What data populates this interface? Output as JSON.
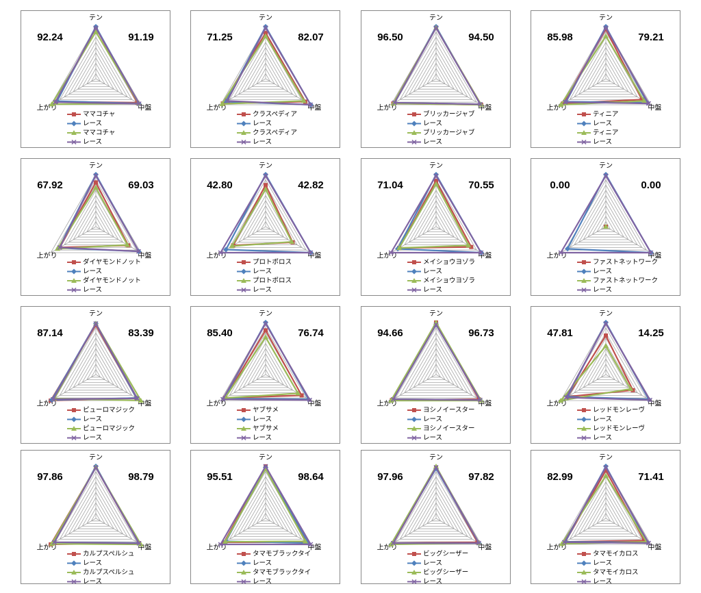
{
  "chart_data": [
    {
      "type": "radar",
      "categories": [
        "テン",
        "中盤",
        "上がり"
      ],
      "annotations": [
        "92.24",
        "91.19"
      ],
      "rlim": [
        0,
        100
      ],
      "rticks": [
        10,
        20,
        30,
        40,
        50,
        60,
        70,
        80,
        90,
        100
      ],
      "series": [
        {
          "name": "ママコチャ",
          "color": "#c0504d",
          "values": [
            98,
            92,
            88
          ]
        },
        {
          "name": "レース",
          "color": "#4f81bd",
          "values": [
            100,
            95,
            86
          ]
        },
        {
          "name": "ママコチャ",
          "color": "#9bbb59",
          "values": [
            90,
            95,
            98
          ]
        },
        {
          "name": "レース",
          "color": "#8064a2",
          "values": [
            98,
            96,
            90
          ]
        }
      ]
    },
    {
      "type": "radar",
      "categories": [
        "テン",
        "中盤",
        "上がり"
      ],
      "annotations": [
        "71.25",
        "82.07"
      ],
      "rlim": [
        0,
        100
      ],
      "rticks": [
        10,
        20,
        30,
        40,
        50,
        60,
        70,
        80,
        90,
        100
      ],
      "series": [
        {
          "name": "クラスペディア",
          "color": "#c0504d",
          "values": [
            88,
            88,
            95
          ]
        },
        {
          "name": "レース",
          "color": "#4f81bd",
          "values": [
            100,
            100,
            88
          ]
        },
        {
          "name": "クラスペディア",
          "color": "#9bbb59",
          "values": [
            82,
            85,
            97
          ]
        },
        {
          "name": "レース",
          "color": "#8064a2",
          "values": [
            98,
            100,
            85
          ]
        }
      ]
    },
    {
      "type": "radar",
      "categories": [
        "テン",
        "中盤",
        "上がり"
      ],
      "annotations": [
        "96.50",
        "94.50"
      ],
      "rlim": [
        0,
        100
      ],
      "rticks": [
        10,
        20,
        30,
        40,
        50,
        60,
        70,
        80,
        90,
        100
      ],
      "series": [
        {
          "name": "ブリッカージャブ",
          "color": "#c0504d",
          "values": [
            98,
            100,
            95
          ]
        },
        {
          "name": "レース",
          "color": "#4f81bd",
          "values": [
            100,
            98,
            92
          ]
        },
        {
          "name": "ブリッカージャブ",
          "color": "#9bbb59",
          "values": [
            98,
            100,
            95
          ]
        },
        {
          "name": "レース",
          "color": "#8064a2",
          "values": [
            98,
            98,
            92
          ]
        }
      ]
    },
    {
      "type": "radar",
      "categories": [
        "テン",
        "中盤",
        "上がり"
      ],
      "annotations": [
        "85.98",
        "79.21"
      ],
      "rlim": [
        0,
        100
      ],
      "rticks": [
        10,
        20,
        30,
        40,
        50,
        60,
        70,
        80,
        90,
        100
      ],
      "series": [
        {
          "name": "ティニア",
          "color": "#c0504d",
          "values": [
            95,
            80,
            95
          ]
        },
        {
          "name": "レース",
          "color": "#4f81bd",
          "values": [
            100,
            92,
            88
          ]
        },
        {
          "name": "ティニア",
          "color": "#9bbb59",
          "values": [
            82,
            85,
            100
          ]
        },
        {
          "name": "レース",
          "color": "#8064a2",
          "values": [
            98,
            95,
            90
          ]
        }
      ]
    },
    {
      "type": "radar",
      "categories": [
        "テン",
        "中盤",
        "上がり"
      ],
      "annotations": [
        "67.92",
        "69.03"
      ],
      "rlim": [
        0,
        100
      ],
      "rticks": [
        10,
        20,
        30,
        40,
        50,
        60,
        70,
        80,
        90,
        100
      ],
      "series": [
        {
          "name": "ダイヤモンドノット",
          "color": "#c0504d",
          "values": [
            85,
            72,
            80
          ]
        },
        {
          "name": "レース",
          "color": "#4f81bd",
          "values": [
            100,
            95,
            82
          ]
        },
        {
          "name": "ダイヤモンドノット",
          "color": "#9bbb59",
          "values": [
            75,
            70,
            85
          ]
        },
        {
          "name": "レース",
          "color": "#8064a2",
          "values": [
            98,
            95,
            80
          ]
        }
      ]
    },
    {
      "type": "radar",
      "categories": [
        "テン",
        "中盤",
        "上がり"
      ],
      "annotations": [
        "42.80",
        "42.82"
      ],
      "rlim": [
        0,
        100
      ],
      "rticks": [
        10,
        20,
        30,
        40,
        50,
        60,
        70,
        80,
        90,
        100
      ],
      "series": [
        {
          "name": "プロトポロス",
          "color": "#c0504d",
          "values": [
            80,
            60,
            72
          ]
        },
        {
          "name": "レース",
          "color": "#4f81bd",
          "values": [
            100,
            100,
            88
          ]
        },
        {
          "name": "プロトポロス",
          "color": "#9bbb59",
          "values": [
            72,
            58,
            75
          ]
        },
        {
          "name": "レース",
          "color": "#8064a2",
          "values": [
            98,
            100,
            100
          ]
        }
      ]
    },
    {
      "type": "radar",
      "categories": [
        "テン",
        "中盤",
        "上がり"
      ],
      "annotations": [
        "71.04",
        "70.55"
      ],
      "rlim": [
        0,
        100
      ],
      "rticks": [
        10,
        20,
        30,
        40,
        50,
        60,
        70,
        80,
        90,
        100
      ],
      "series": [
        {
          "name": "メイショウヨゾラ",
          "color": "#c0504d",
          "values": [
            88,
            78,
            82
          ]
        },
        {
          "name": "レース",
          "color": "#4f81bd",
          "values": [
            100,
            100,
            85
          ]
        },
        {
          "name": "メイショウヨゾラ",
          "color": "#9bbb59",
          "values": [
            82,
            72,
            82
          ]
        },
        {
          "name": "レース",
          "color": "#8064a2",
          "values": [
            98,
            100,
            100
          ]
        }
      ]
    },
    {
      "type": "radar",
      "categories": [
        "テン",
        "中盤",
        "上がり"
      ],
      "annotations": [
        "0.00",
        "0.00"
      ],
      "rlim": [
        0,
        100
      ],
      "rticks": [
        10,
        20,
        30,
        40,
        50,
        60,
        70,
        80,
        90,
        100
      ],
      "series": [
        {
          "name": "ファストネットワーク",
          "color": "#c0504d",
          "values": [
            0,
            0,
            0
          ]
        },
        {
          "name": "レース",
          "color": "#4f81bd",
          "values": [
            100,
            100,
            85
          ]
        },
        {
          "name": "ファストネットワーク",
          "color": "#9bbb59",
          "values": [
            0,
            0,
            0
          ]
        },
        {
          "name": "レース",
          "color": "#8064a2",
          "values": [
            98,
            100,
            100
          ]
        }
      ]
    },
    {
      "type": "radar",
      "categories": [
        "テン",
        "中盤",
        "上がり"
      ],
      "annotations": [
        "87.14",
        "83.39"
      ],
      "rlim": [
        0,
        100
      ],
      "rticks": [
        10,
        20,
        30,
        40,
        50,
        60,
        70,
        80,
        90,
        100
      ],
      "series": [
        {
          "name": "ピューロマジック",
          "color": "#c0504d",
          "values": [
            95,
            90,
            100
          ]
        },
        {
          "name": "レース",
          "color": "#4f81bd",
          "values": [
            98,
            90,
            98
          ]
        },
        {
          "name": "ピューロマジック",
          "color": "#9bbb59",
          "values": [
            98,
            100,
            92
          ]
        },
        {
          "name": "レース",
          "color": "#8064a2",
          "values": [
            98,
            92,
            95
          ]
        }
      ]
    },
    {
      "type": "radar",
      "categories": [
        "テン",
        "中盤",
        "上がり"
      ],
      "annotations": [
        "85.40",
        "76.74"
      ],
      "rlim": [
        0,
        100
      ],
      "rticks": [
        10,
        20,
        30,
        40,
        50,
        60,
        70,
        80,
        90,
        100
      ],
      "series": [
        {
          "name": "ヤブサメ",
          "color": "#c0504d",
          "values": [
            85,
            80,
            90
          ]
        },
        {
          "name": "レース",
          "color": "#4f81bd",
          "values": [
            100,
            95,
            92
          ]
        },
        {
          "name": "ヤブサメ",
          "color": "#9bbb59",
          "values": [
            72,
            72,
            90
          ]
        },
        {
          "name": "レース",
          "color": "#8064a2",
          "values": [
            98,
            98,
            95
          ]
        }
      ]
    },
    {
      "type": "radar",
      "categories": [
        "テン",
        "中盤",
        "上がり"
      ],
      "annotations": [
        "94.66",
        "96.73"
      ],
      "rlim": [
        0,
        100
      ],
      "rticks": [
        10,
        20,
        30,
        40,
        50,
        60,
        70,
        80,
        90,
        100
      ],
      "series": [
        {
          "name": "ヨシノイースター",
          "color": "#c0504d",
          "values": [
            100,
            95,
            98
          ]
        },
        {
          "name": "レース",
          "color": "#4f81bd",
          "values": [
            96,
            98,
            95
          ]
        },
        {
          "name": "ヨシノイースター",
          "color": "#9bbb59",
          "values": [
            100,
            100,
            100
          ]
        },
        {
          "name": "レース",
          "color": "#8064a2",
          "values": [
            96,
            98,
            95
          ]
        }
      ]
    },
    {
      "type": "radar",
      "categories": [
        "テン",
        "中盤",
        "上がり"
      ],
      "annotations": [
        "47.81",
        "14.25"
      ],
      "rlim": [
        0,
        100
      ],
      "rticks": [
        10,
        20,
        30,
        40,
        50,
        60,
        70,
        80,
        90,
        100
      ],
      "series": [
        {
          "name": "レッドモンレーヴ",
          "color": "#c0504d",
          "values": [
            75,
            60,
            85
          ]
        },
        {
          "name": "レース",
          "color": "#4f81bd",
          "values": [
            100,
            95,
            85
          ]
        },
        {
          "name": "レッドモンレーヴ",
          "color": "#9bbb59",
          "values": [
            55,
            55,
            100
          ]
        },
        {
          "name": "レース",
          "color": "#8064a2",
          "values": [
            98,
            98,
            88
          ]
        }
      ]
    },
    {
      "type": "radar",
      "categories": [
        "テン",
        "中盤",
        "上がり"
      ],
      "annotations": [
        "97.86",
        "98.79"
      ],
      "rlim": [
        0,
        100
      ],
      "rticks": [
        10,
        20,
        30,
        40,
        50,
        60,
        70,
        80,
        90,
        100
      ],
      "series": [
        {
          "name": "カルプスペルシュ",
          "color": "#c0504d",
          "values": [
            98,
            95,
            100
          ]
        },
        {
          "name": "レース",
          "color": "#4f81bd",
          "values": [
            100,
            95,
            92
          ]
        },
        {
          "name": "カルプスペルシュ",
          "color": "#9bbb59",
          "values": [
            98,
            100,
            98
          ]
        },
        {
          "name": "レース",
          "color": "#8064a2",
          "values": [
            98,
            96,
            92
          ]
        }
      ]
    },
    {
      "type": "radar",
      "categories": [
        "テン",
        "中盤",
        "上がり"
      ],
      "annotations": [
        "95.51",
        "98.64"
      ],
      "rlim": [
        0,
        100
      ],
      "rticks": [
        10,
        20,
        30,
        40,
        50,
        60,
        70,
        80,
        90,
        100
      ],
      "series": [
        {
          "name": "タマモブラックタイ",
          "color": "#c0504d",
          "values": [
            100,
            92,
            92
          ]
        },
        {
          "name": "レース",
          "color": "#4f81bd",
          "values": [
            98,
            95,
            88
          ]
        },
        {
          "name": "タマモブラックタイ",
          "color": "#9bbb59",
          "values": [
            95,
            88,
            90
          ]
        },
        {
          "name": "レース",
          "color": "#8064a2",
          "values": [
            100,
            100,
            100
          ]
        }
      ]
    },
    {
      "type": "radar",
      "categories": [
        "テン",
        "中盤",
        "上がり"
      ],
      "annotations": [
        "97.96",
        "97.82"
      ],
      "rlim": [
        0,
        100
      ],
      "rticks": [
        10,
        20,
        30,
        40,
        50,
        60,
        70,
        80,
        90,
        100
      ],
      "series": [
        {
          "name": "ビッグシーザー",
          "color": "#c0504d",
          "values": [
            98,
            92,
            95
          ]
        },
        {
          "name": "レース",
          "color": "#4f81bd",
          "values": [
            96,
            95,
            98
          ]
        },
        {
          "name": "ビッグシーザー",
          "color": "#9bbb59",
          "values": [
            100,
            95,
            100
          ]
        },
        {
          "name": "レース",
          "color": "#8064a2",
          "values": [
            98,
            95,
            95
          ]
        }
      ]
    },
    {
      "type": "radar",
      "categories": [
        "テン",
        "中盤",
        "上がり"
      ],
      "annotations": [
        "82.99",
        "71.41"
      ],
      "rlim": [
        0,
        100
      ],
      "rticks": [
        10,
        20,
        30,
        40,
        50,
        60,
        70,
        80,
        90,
        100
      ],
      "series": [
        {
          "name": "タマモイカロス",
          "color": "#c0504d",
          "values": [
            92,
            85,
            90
          ]
        },
        {
          "name": "レース",
          "color": "#4f81bd",
          "values": [
            100,
            92,
            90
          ]
        },
        {
          "name": "タマモイカロス",
          "color": "#9bbb59",
          "values": [
            82,
            90,
            98
          ]
        },
        {
          "name": "レース",
          "color": "#8064a2",
          "values": [
            98,
            95,
            92
          ]
        }
      ]
    }
  ]
}
